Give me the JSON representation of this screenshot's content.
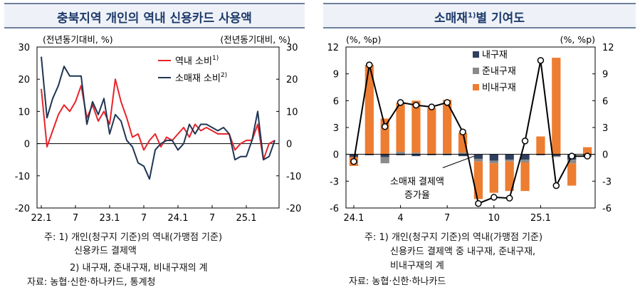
{
  "left_panel": {
    "title": "충북지역 개인의 역내 신용카드 사용액",
    "notes": [
      "주: 1) 개인(청구지 기준)의 역내(가맹점 기준)",
      "신용카드 결제액",
      "2) 내구재, 준내구재, 비내구재의 계",
      "자료: 농협·신한·하나카드, 통계청"
    ]
  },
  "right_panel": {
    "title_main": "소매재",
    "title_sup": "1)",
    "title_rest": "별 기여도",
    "notes": [
      "주: 1) 개인(청구지 기준)의 역내(가맹점 기준)",
      "신용카드 결제액 중 내구재, 준내구재,",
      "비내구재의 계",
      "자료: 농협·신한·하나카드"
    ]
  },
  "chart_data": [
    {
      "type": "line",
      "unit_left": "(전년동기대비, %)",
      "unit_right": "(전년동기대비, %)",
      "ylim": [
        -20,
        30
      ],
      "yticks": [
        30,
        20,
        10,
        0,
        -10,
        -20
      ],
      "x_labels": [
        "22.1",
        "7",
        "23.1",
        "7",
        "24.1",
        "7",
        "25.1"
      ],
      "x_label_index": [
        0,
        6,
        12,
        18,
        24,
        30,
        36
      ],
      "n_points": 42,
      "legend_position": "top-right",
      "colors": {
        "series1": "#e8232a",
        "series2": "#1f3653"
      },
      "series": [
        {
          "name": "역내 소비",
          "name_sup": "1)",
          "values": [
            17,
            -1,
            4,
            9,
            12,
            10,
            13,
            18,
            8,
            12,
            7,
            10,
            6,
            20,
            13,
            8,
            2,
            3,
            -2,
            1,
            3,
            -1,
            2,
            1,
            3,
            5,
            2,
            6,
            4,
            5,
            4,
            3,
            3,
            3,
            -2,
            0,
            1,
            1,
            6,
            -5,
            0,
            1
          ]
        },
        {
          "name": "소매재 소비",
          "name_sup": "2)",
          "values": [
            27,
            8,
            14,
            18,
            24,
            21,
            21,
            21,
            6,
            13,
            9,
            14,
            3,
            9,
            7,
            1,
            -1,
            -6,
            -7,
            -11,
            -2,
            0,
            1,
            1,
            -2,
            0,
            6,
            3,
            6,
            6,
            5,
            4,
            5,
            3,
            -5,
            -4,
            -4,
            1,
            10,
            -5,
            -4,
            1
          ]
        }
      ]
    },
    {
      "type": "bar",
      "stacked": true,
      "unit_left": "(%, %p)",
      "unit_right": "(%, %p)",
      "ylim": [
        -6,
        12
      ],
      "yticks": [
        12,
        9,
        6,
        3,
        0,
        -3,
        -6
      ],
      "x_labels": [
        "24.1",
        "4",
        "7",
        "10",
        "25.1"
      ],
      "x_label_index": [
        0,
        3,
        6,
        9,
        12
      ],
      "colors": {
        "내구재": "#2f3f5f",
        "준내구재": "#8a8a8a",
        "비내구재": "#ed7d31",
        "line": "#000000"
      },
      "series": [
        {
          "name": "내구재",
          "values": [
            -0.3,
            -0.1,
            -0.3,
            -0.1,
            -0.2,
            -0.1,
            -0.1,
            -0.2,
            -0.5,
            -0.7,
            -0.6,
            -0.6,
            -0.1,
            -0.2,
            -0.6,
            -0.1
          ]
        },
        {
          "name": "준내구재",
          "values": [
            0.0,
            0.0,
            -0.7,
            0.3,
            0.2,
            0.0,
            0.1,
            0.2,
            -0.3,
            -0.3,
            -0.2,
            -0.3,
            0.0,
            -0.1,
            -0.4,
            -0.2
          ]
        },
        {
          "name": "비내구재",
          "values": [
            -1.0,
            10.0,
            4.0,
            5.5,
            5.8,
            5.2,
            6.0,
            2.2,
            -4.2,
            -3.3,
            -3.3,
            -3.2,
            2.0,
            10.8,
            -2.5,
            0.8
          ]
        }
      ],
      "line": {
        "name": "소매재 결제액 증가율",
        "name_line1": "소매재 결제액",
        "name_line2": "증가율",
        "values": [
          -0.8,
          10.0,
          3.1,
          5.8,
          5.5,
          5.3,
          5.8,
          2.5,
          -5.5,
          -4.8,
          -4.9,
          1.5,
          10.5,
          -3.5,
          -0.2,
          -0.2
        ]
      }
    }
  ]
}
